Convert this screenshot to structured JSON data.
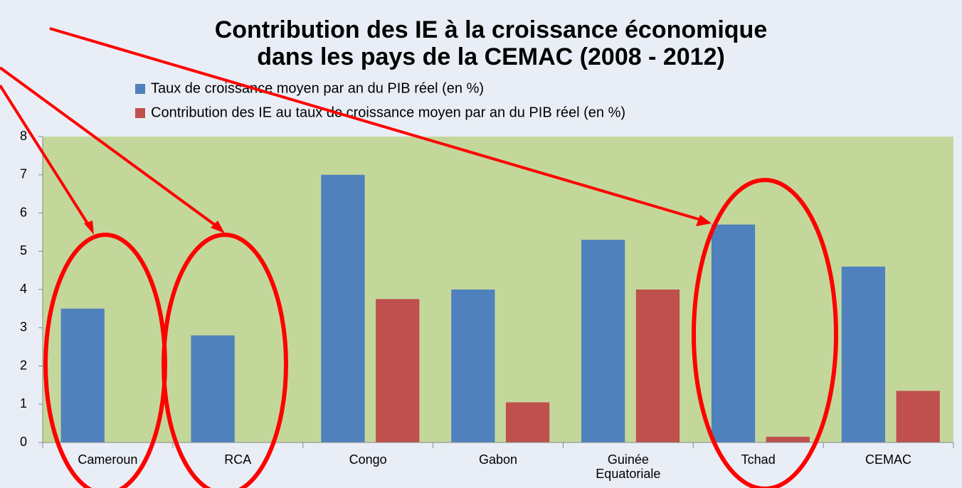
{
  "chart_data": {
    "type": "bar",
    "title": [
      "Contribution des IE à la croissance économique",
      "dans les pays de la CEMAC (2008 - 2012)"
    ],
    "categories": [
      "Cameroun",
      "RCA",
      "Congo",
      "Gabon",
      "Guinée Equatoriale",
      "Tchad",
      "CEMAC"
    ],
    "series": [
      {
        "name": "Taux de croissance moyen par an du PIB réel (en %)",
        "color": "#4f81bd",
        "values": [
          3.5,
          2.8,
          7.0,
          4.0,
          5.3,
          5.7,
          4.6
        ]
      },
      {
        "name": "Contribution des IE au taux de croissance moyen par an du PIB réel (en %)",
        "color": "#c0504d",
        "values": [
          0,
          0,
          3.75,
          1.05,
          4.0,
          0.15,
          1.35
        ]
      }
    ],
    "ylim": [
      0,
      8
    ],
    "yticks": [
      0,
      1,
      2,
      3,
      4,
      5,
      6,
      7,
      8
    ],
    "grid": false,
    "plot_color": "#c4d79b"
  }
}
